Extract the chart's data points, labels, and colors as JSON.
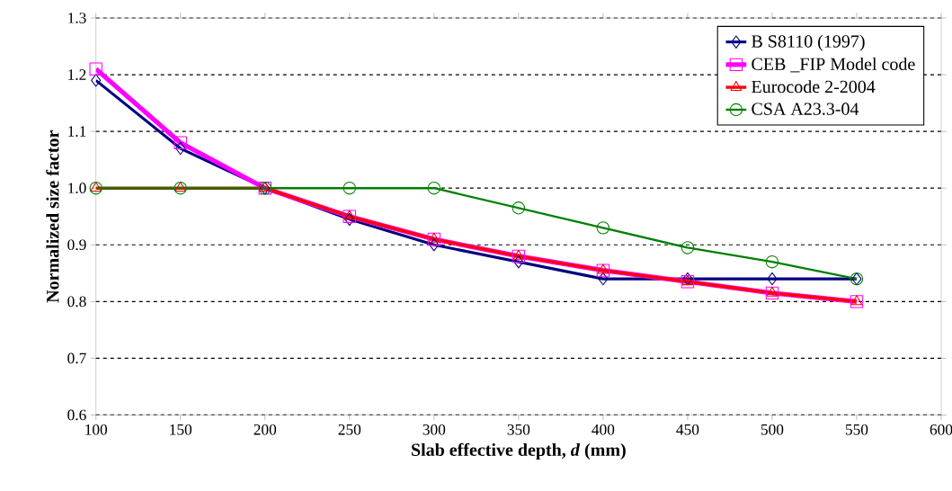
{
  "chart_data": {
    "type": "line",
    "xlabel": "Slab effective depth, *d* (mm)",
    "ylabel": "Normalized size factor",
    "x": [
      100,
      150,
      200,
      250,
      300,
      350,
      400,
      450,
      500,
      550
    ],
    "series": [
      {
        "name": "B S8110 (1997)",
        "color": "#000080",
        "marker": "diamond",
        "values": [
          1.19,
          1.07,
          1.0,
          0.945,
          0.9,
          0.87,
          0.84,
          0.84,
          0.84,
          0.84
        ]
      },
      {
        "name": "CEB _FIP Model code",
        "color": "#ff00ff",
        "marker": "square",
        "values": [
          1.21,
          1.08,
          1.0,
          0.95,
          0.91,
          0.88,
          0.855,
          0.835,
          0.815,
          0.8
        ]
      },
      {
        "name": "Eurocode 2-2004",
        "color": "#ff0000",
        "marker": "triangle",
        "values": [
          1.0,
          1.0,
          1.0,
          0.95,
          0.91,
          0.88,
          0.855,
          0.835,
          0.815,
          0.8
        ]
      },
      {
        "name": "CSA A23.3-04",
        "color": "#008000",
        "marker": "circle",
        "values": [
          1.0,
          1.0,
          1.0,
          1.0,
          1.0,
          0.965,
          0.93,
          0.895,
          0.87,
          0.84
        ]
      }
    ],
    "xlim": [
      100,
      600
    ],
    "ylim": [
      0.6,
      1.3
    ],
    "xticks": [
      100,
      150,
      200,
      250,
      300,
      350,
      400,
      450,
      500,
      550,
      600
    ],
    "yticks": [
      {
        "value": 0.6,
        "label": "0.6"
      },
      {
        "value": 0.7,
        "label": "0.7"
      },
      {
        "value": 0.8,
        "label": "0.8"
      },
      {
        "value": 0.9,
        "label": "0.9"
      },
      {
        "value": 1.0,
        "label": "1.0"
      },
      {
        "value": 1.1,
        "label": "1.1"
      },
      {
        "value": 1.2,
        "label": "1.2"
      },
      {
        "value": 1.3,
        "label": "1.3"
      }
    ],
    "grid": "y",
    "legend": "top right",
    "line_style": "solid"
  }
}
